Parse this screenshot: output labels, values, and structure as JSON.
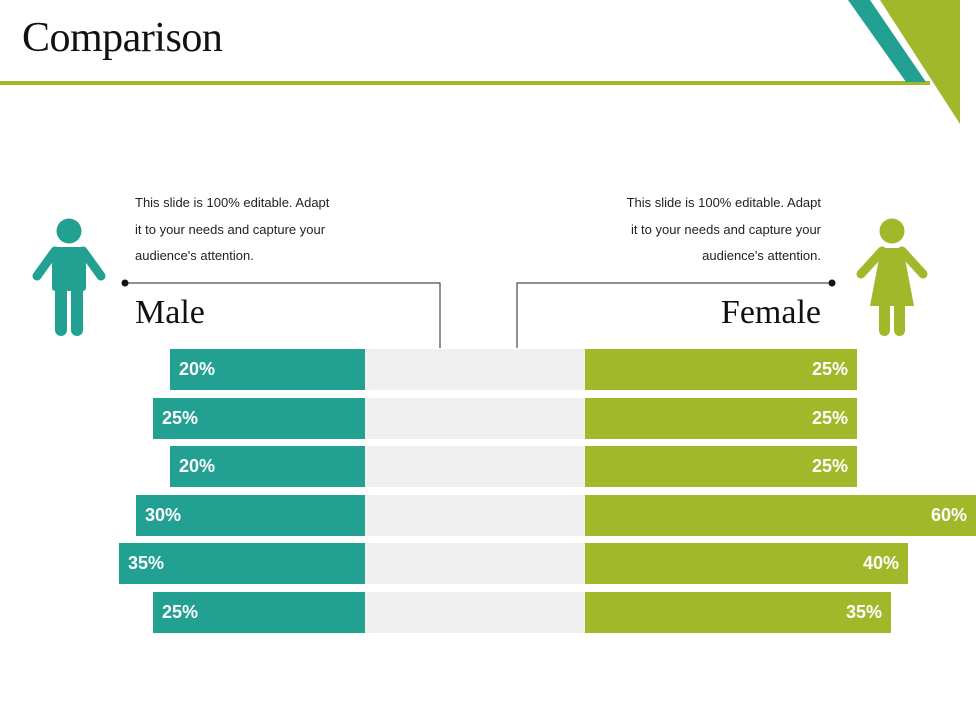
{
  "title": "Comparison",
  "colors": {
    "accent_green": "#a1b82a",
    "accent_teal": "#22a192",
    "track": "#f0f0f0"
  },
  "left_panel": {
    "heading": "Male",
    "icon": "male-person-icon",
    "description_lines": [
      "This slide is 100% editable. Adapt",
      "it to your needs and capture your",
      "audience's attention."
    ]
  },
  "right_panel": {
    "heading": "Female",
    "icon": "female-person-icon",
    "description_lines": [
      "This slide is 100% editable. Adapt",
      "it to your needs and capture your",
      "audience's attention."
    ]
  },
  "chart_data": {
    "type": "bar",
    "orientation": "horizontal-diverging",
    "title": "",
    "series": [
      {
        "name": "Male",
        "color": "#22a192",
        "values": [
          20,
          25,
          20,
          30,
          35,
          25
        ],
        "labels": [
          "20%",
          "25%",
          "20%",
          "30%",
          "35%",
          "25%"
        ]
      },
      {
        "name": "Female",
        "color": "#a1b82a",
        "values": [
          25,
          25,
          25,
          60,
          40,
          35
        ],
        "labels": [
          "25%",
          "25%",
          "25%",
          "60%",
          "40%",
          "35%"
        ]
      }
    ],
    "unit": "%",
    "grid": false
  }
}
